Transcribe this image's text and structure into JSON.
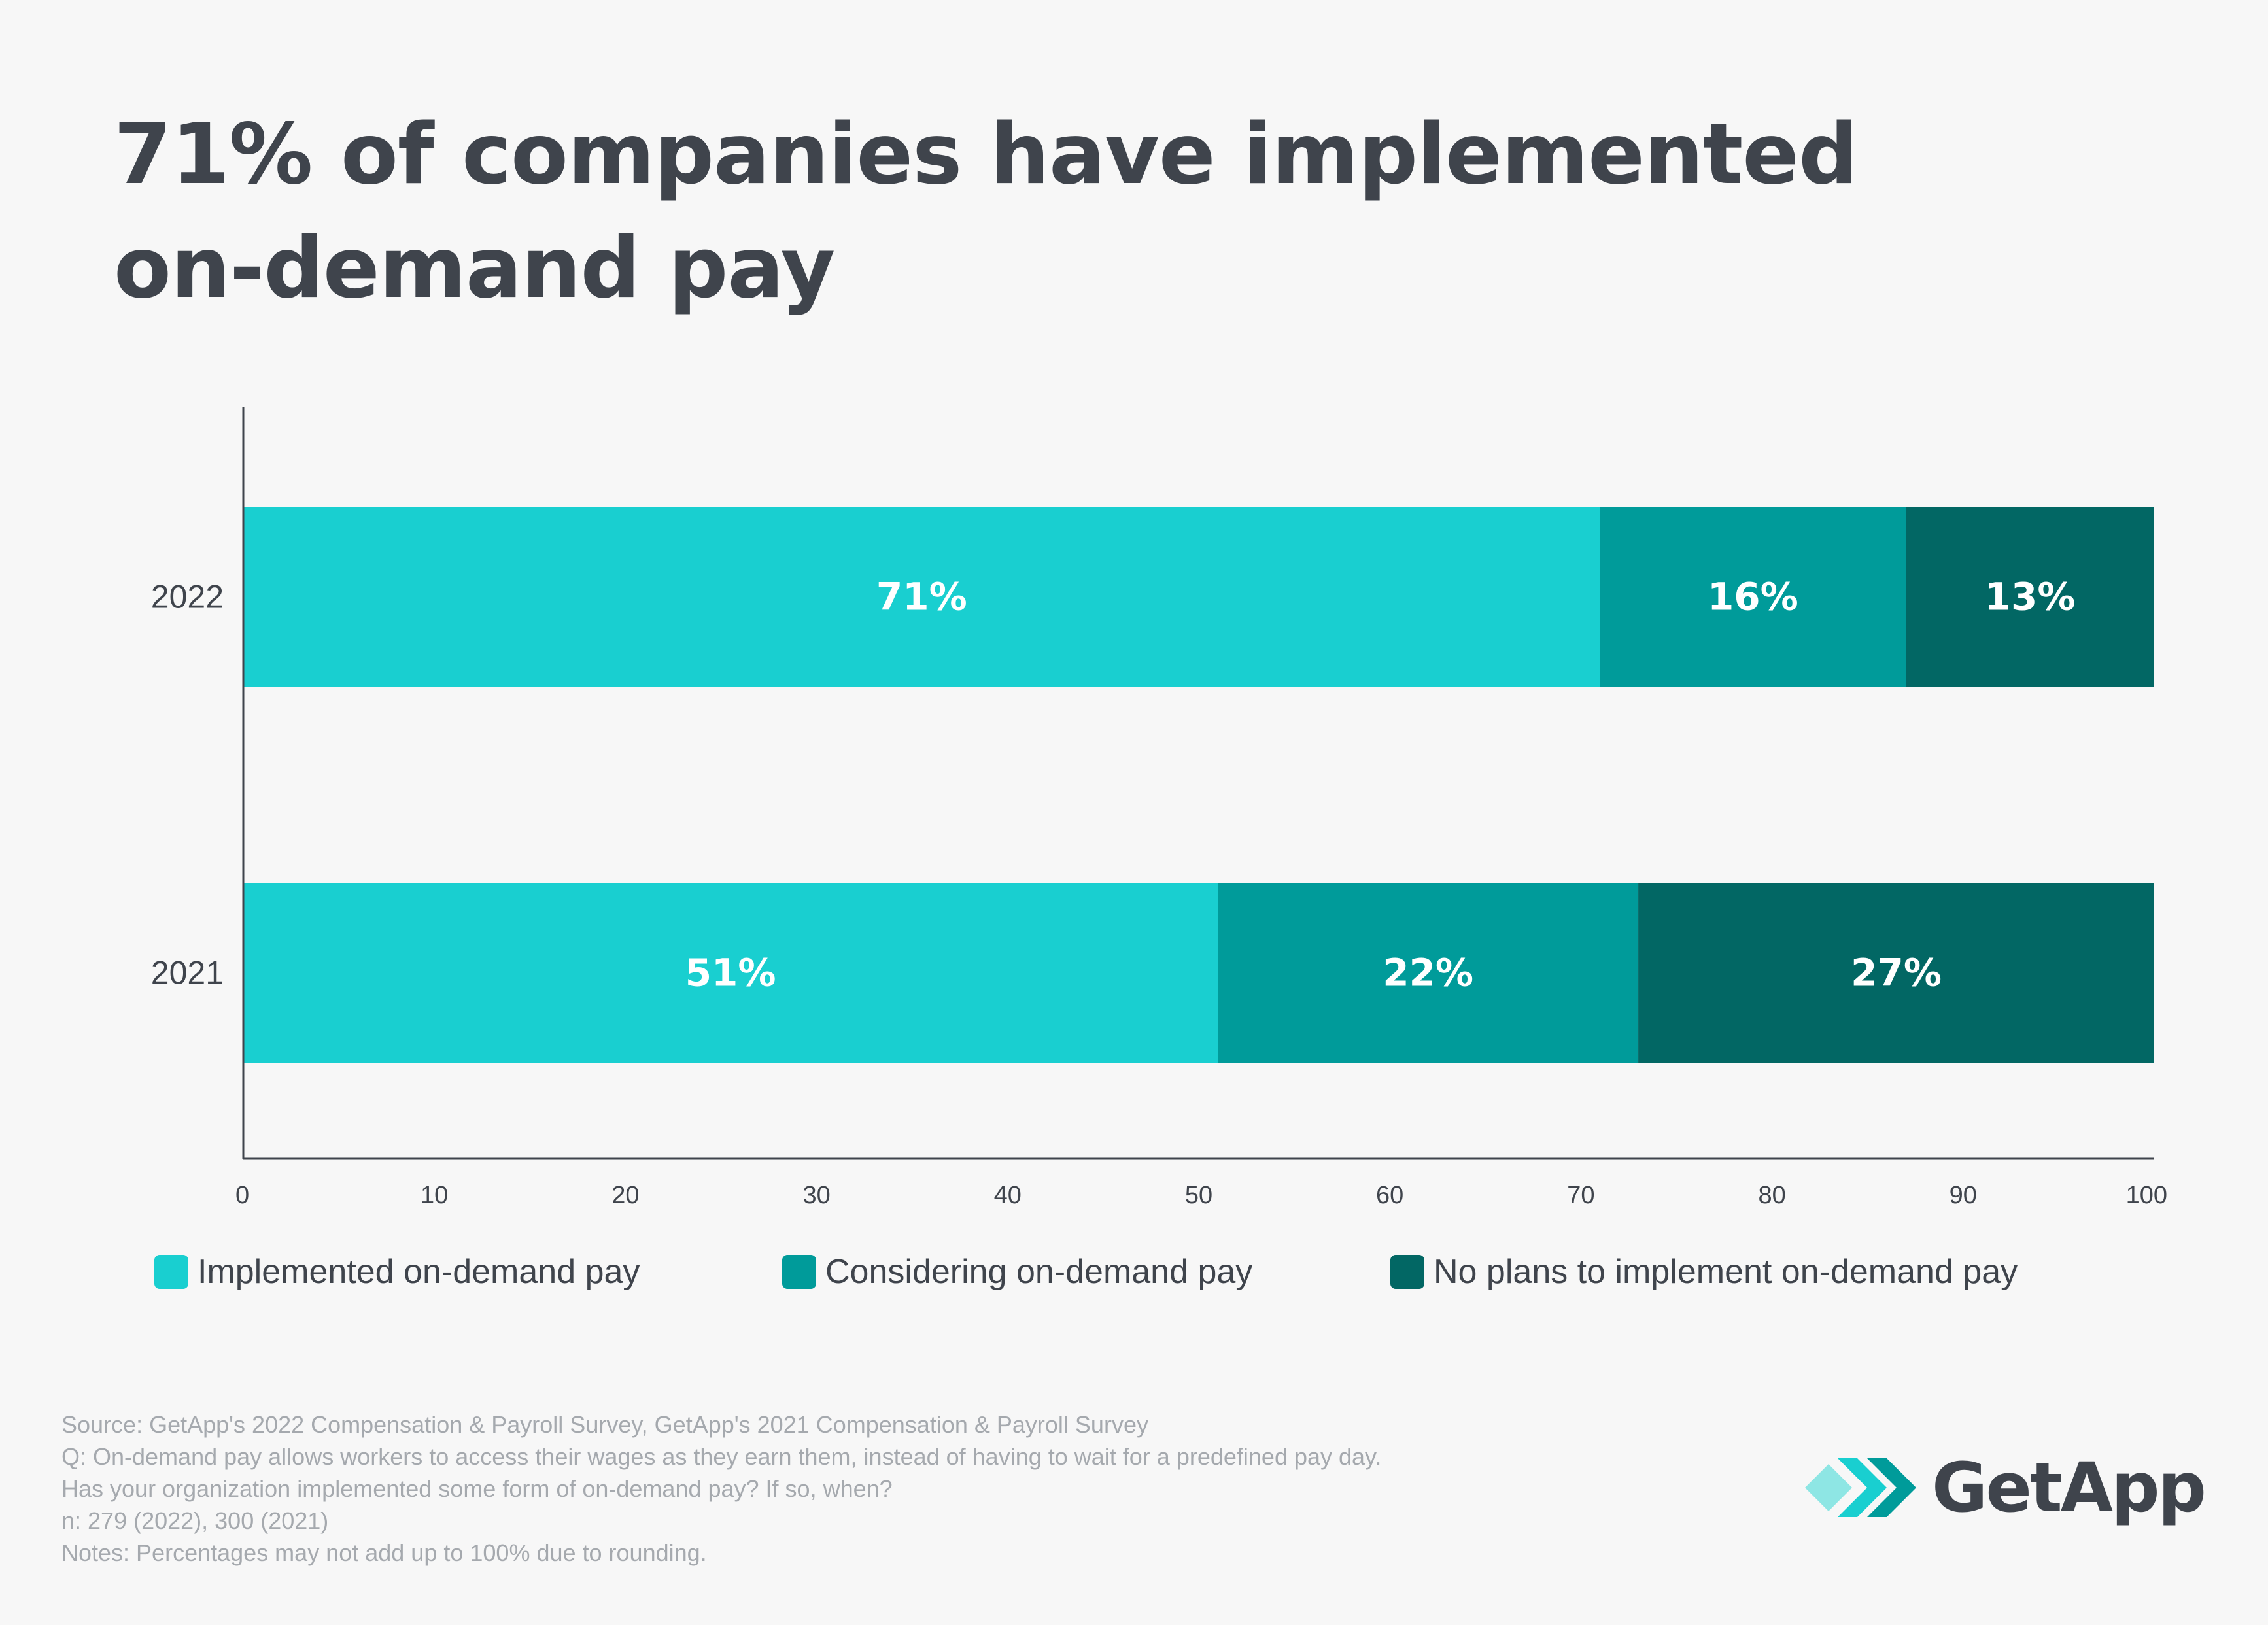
{
  "title": {
    "line1": "71% of companies have implemented",
    "line2": "on-demand pay"
  },
  "colors": {
    "implemented": "#19cfd0",
    "considering": "#009b9a",
    "no_plans": "#026764",
    "text": "#3f444c",
    "footnote": "#a5a9ae",
    "axis": "#3f444c"
  },
  "chart_data": {
    "type": "bar",
    "orientation": "horizontal",
    "stacked": true,
    "categories": [
      "2022",
      "2021"
    ],
    "series": [
      {
        "name": "Implemented on-demand pay",
        "values": [
          71,
          51
        ],
        "labels": [
          "71%",
          "51%"
        ]
      },
      {
        "name": "Considering on-demand pay",
        "values": [
          16,
          22
        ],
        "labels": [
          "16%",
          "22%"
        ]
      },
      {
        "name": "No plans to implement on-demand pay",
        "values": [
          13,
          27
        ],
        "labels": [
          "13%",
          "27%"
        ]
      }
    ],
    "xlim": [
      0,
      100
    ],
    "xticks": [
      0,
      10,
      20,
      30,
      40,
      50,
      60,
      70,
      80,
      90,
      100
    ],
    "xlabel": "",
    "ylabel": "",
    "grid": false,
    "legend_position": "bottom"
  },
  "legend": {
    "items": [
      {
        "label": "Implemented on-demand pay"
      },
      {
        "label": "Considering on-demand pay"
      },
      {
        "label": "No plans to implement on-demand pay"
      }
    ]
  },
  "footnotes": {
    "source": "Source: GetApp's 2022 Compensation & Payroll Survey, GetApp's 2021 Compensation & Payroll Survey",
    "question": "Q: On-demand pay allows workers to access their wages as they earn them, instead of having to wait for a predefined pay day.",
    "question_cont": "Has your organization implemented some form of on-demand pay? If so, when?",
    "sample": "n: 279 (2022), 300 (2021)",
    "notes": "Notes: Percentages may not add up to 100% due to rounding."
  },
  "logo": {
    "name": "GetApp"
  }
}
